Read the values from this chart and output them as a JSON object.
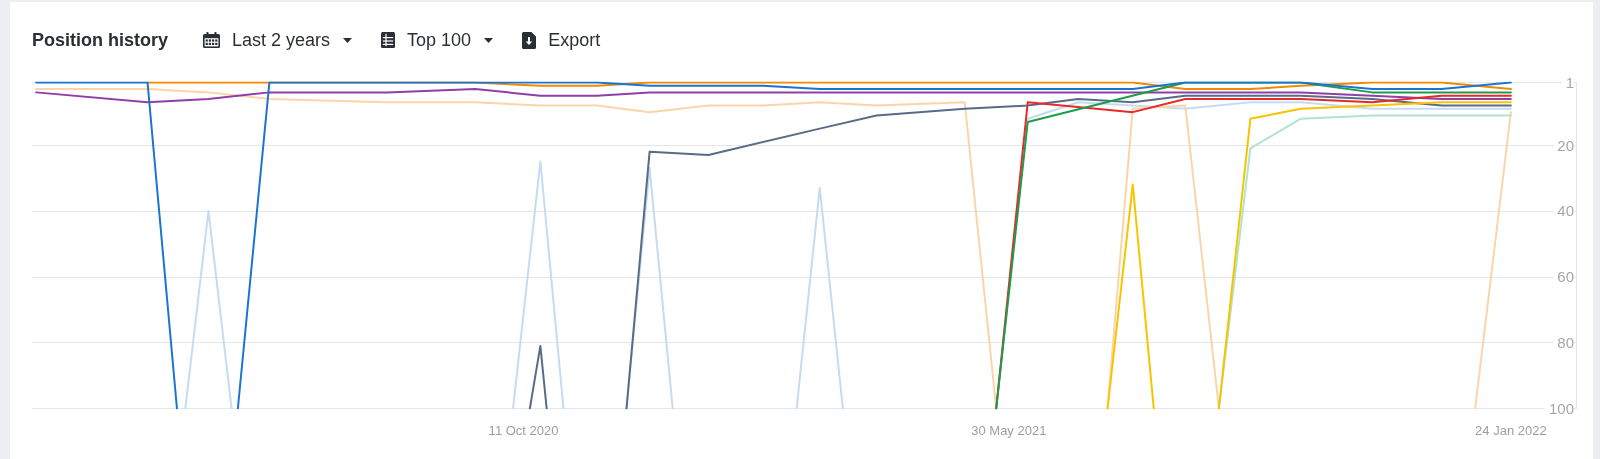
{
  "chart_data": {
    "type": "line",
    "title": "Position history",
    "annotations": [
      "Last 2 years",
      "Top 100",
      "Export"
    ],
    "xlim": [
      "2020-02-20",
      "2022-02-24"
    ],
    "xticks": [
      {
        "value": "2020-10-11",
        "label": "11 Oct 2020"
      },
      {
        "value": "2021-05-30",
        "label": "30 May 2021"
      },
      {
        "value": "2022-01-24",
        "label": "24 Jan 2022"
      }
    ],
    "ylim": [
      100,
      1
    ],
    "yticks": [
      1,
      20,
      40,
      60,
      80,
      100
    ],
    "grid": "y",
    "marker": "none",
    "line_style": "solid",
    "series": [
      {
        "color": "#c5dcf0",
        "x": [
          "2020-05-03",
          "2020-05-14",
          "2020-05-25",
          "2020-06-12",
          "2020-10-06",
          "2020-10-19",
          "2020-10-30",
          "2020-11-15",
          "2020-11-29",
          "2020-12-10",
          "2020-12-21",
          "2021-01-07",
          "2021-02-18",
          "2021-03-01",
          "2021-03-12",
          "2021-03-28",
          "2021-05-24",
          "2021-06-08",
          "2021-07-02",
          "2021-07-28",
          "2021-08-22",
          "2021-09-22",
          "2021-10-16",
          "2021-11-19",
          "2021-12-22",
          "2022-01-24"
        ],
        "values": [
          100,
          40,
          100,
          null,
          100,
          25,
          100,
          null,
          100,
          27,
          100,
          null,
          100,
          33,
          100,
          null,
          100,
          12,
          7,
          8,
          9,
          7,
          7,
          9,
          9,
          9
        ]
      },
      {
        "color": "#fbd5a8",
        "x": [
          "2020-02-22",
          "2020-04-15",
          "2020-05-14",
          "2020-06-12",
          "2020-08-07",
          "2020-09-18",
          "2020-10-19",
          "2020-11-15",
          "2020-12-10",
          "2021-01-07",
          "2021-02-02",
          "2021-03-01",
          "2021-03-28",
          "2021-05-09",
          "2021-05-24",
          "2021-06-08",
          "2021-07-16",
          "2021-07-28",
          "2021-08-22",
          "2021-09-07",
          "2021-09-22",
          "2022-01-07",
          "2022-01-24"
        ],
        "values": [
          3,
          3,
          4,
          6,
          7,
          7,
          8,
          8,
          10,
          8,
          8,
          7,
          8,
          7,
          100,
          null,
          100,
          9,
          8,
          100,
          null,
          100,
          10
        ]
      },
      {
        "color": "#b0e4cc",
        "x": [
          "2021-09-07",
          "2021-09-22",
          "2021-10-16",
          "2021-11-19",
          "2021-12-22",
          "2022-01-24"
        ],
        "values": [
          100,
          21,
          12,
          11,
          11,
          11
        ]
      },
      {
        "color": "#586b88",
        "x": [
          "2020-10-14",
          "2020-10-19",
          "2020-10-22",
          "2020-11-15",
          "2020-11-29",
          "2020-12-10",
          "2021-01-07",
          "2021-03-01",
          "2021-03-28",
          "2021-05-09",
          "2021-06-08",
          "2021-07-02",
          "2021-07-28",
          "2021-08-22",
          "2021-10-16",
          "2021-11-19",
          "2021-12-22",
          "2022-01-24"
        ],
        "values": [
          100,
          81,
          100,
          null,
          100,
          22,
          23,
          15,
          11,
          9,
          8,
          6,
          7,
          5,
          5,
          6,
          8,
          8
        ]
      },
      {
        "color": "#8e3fa8",
        "x": [
          "2020-02-22",
          "2020-04-15",
          "2020-05-14",
          "2020-06-12",
          "2020-08-07",
          "2020-09-18",
          "2020-10-19",
          "2020-11-15",
          "2020-12-10",
          "2021-10-16",
          "2021-11-19",
          "2021-12-22",
          "2022-01-24"
        ],
        "values": [
          4,
          7,
          6,
          4,
          4,
          3,
          5,
          5,
          4,
          4,
          5,
          6,
          6
        ]
      },
      {
        "color": "#f28b00",
        "x": [
          "2020-04-15",
          "2020-06-12",
          "2020-09-18",
          "2020-10-19",
          "2020-11-15",
          "2020-12-10",
          "2021-07-28",
          "2021-08-22",
          "2021-09-22",
          "2021-10-16",
          "2021-11-19",
          "2021-12-22",
          "2022-01-24"
        ],
        "values": [
          1,
          1,
          1,
          2,
          2,
          1,
          1,
          3,
          3,
          2,
          1,
          1,
          3
        ]
      },
      {
        "color": "#f6c500",
        "x": [
          "2021-07-16",
          "2021-07-28",
          "2021-08-07",
          "2021-08-22",
          "2021-09-07",
          "2021-09-22",
          "2021-10-16",
          "2021-11-19",
          "2021-12-22",
          "2022-01-24"
        ],
        "values": [
          100,
          32,
          100,
          null,
          100,
          12,
          9,
          8,
          7,
          7
        ]
      },
      {
        "color": "#e52a2a",
        "x": [
          "2021-05-24",
          "2021-06-08",
          "2021-07-28",
          "2021-08-22",
          "2021-10-16",
          "2021-11-19",
          "2021-12-22",
          "2022-01-24"
        ],
        "values": [
          100,
          7,
          10,
          6,
          6,
          7,
          5,
          5
        ]
      },
      {
        "color": "#1e9c4a",
        "x": [
          "2021-05-24",
          "2021-06-08",
          "2021-08-22",
          "2021-10-16",
          "2021-11-19",
          "2021-12-22",
          "2022-01-24"
        ],
        "values": [
          100,
          13,
          1,
          1,
          4,
          4,
          4
        ]
      },
      {
        "color": "#1b75d0",
        "x": [
          "2020-02-22",
          "2020-04-15",
          "2020-04-29",
          "2020-05-14",
          "2020-05-28",
          "2020-06-12",
          "2020-11-15",
          "2020-12-10",
          "2021-02-02",
          "2021-03-01",
          "2021-07-28",
          "2021-08-22",
          "2021-10-16",
          "2021-11-19",
          "2021-12-22",
          "2022-01-24"
        ],
        "values": [
          1,
          1,
          100,
          null,
          100,
          1,
          1,
          2,
          2,
          3,
          3,
          1,
          1,
          3,
          3,
          1
        ]
      }
    ]
  }
}
